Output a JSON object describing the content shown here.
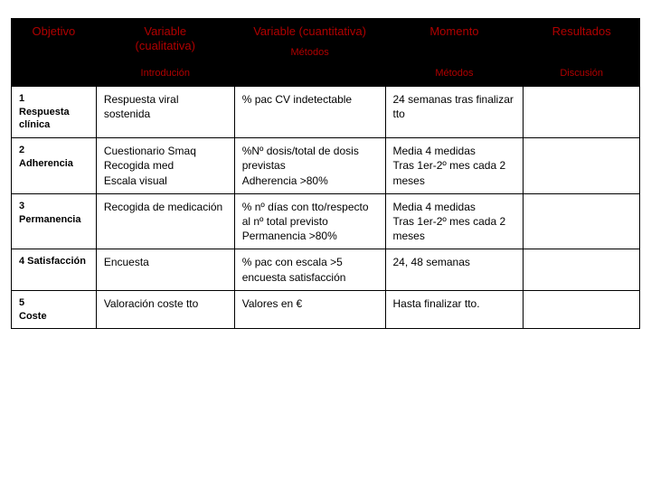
{
  "colors": {
    "header_bg": "#000000",
    "header_fg": "#b00000",
    "border": "#000000",
    "cell_bg": "#ffffff",
    "cell_fg": "#000000"
  },
  "header": {
    "objetivo": "Objetivo",
    "cualitativa_l1": "Variable",
    "cualitativa_l2": "(cualitativa)",
    "cuantitativa": "Variable (cuantitativa)",
    "metodos_top": "Métodos",
    "momento": "Momento",
    "resultados": "Resultados",
    "introduccion": "Introdución",
    "metodos_bottom": "Métodos",
    "discusion": "Discusión"
  },
  "rows": [
    {
      "obj": "1\nRespuesta clínica",
      "cual": "Respuesta viral sostenida",
      "cuan": "% pac CV indetectable",
      "mom": "24 semanas tras finalizar tto",
      "res": ""
    },
    {
      "obj": "2\nAdherencia",
      "cual": "Cuestionario Smaq\nRecogida med\nEscala visual",
      "cuan": "%Nº dosis/total de dosis previstas\nAdherencia >80%",
      "mom": "Media 4 medidas\nTras 1er-2º mes cada 2 meses",
      "res": ""
    },
    {
      "obj": "3\nPermanencia",
      "cual": "Recogida de medicación",
      "cuan": "% nº días con tto/respecto al nº total previsto\nPermanencia >80%",
      "mom": "Media 4 medidas\nTras 1er-2º mes cada 2 meses",
      "res": ""
    },
    {
      "obj": "4 Satisfacción",
      "cual": "Encuesta",
      "cuan": "% pac con escala >5 encuesta satisfacción",
      "mom": "24, 48 semanas",
      "res": ""
    },
    {
      "obj": "5\nCoste",
      "cual": "Valoración coste tto",
      "cuan": "Valores en €",
      "mom": "Hasta finalizar tto.",
      "res": ""
    }
  ]
}
